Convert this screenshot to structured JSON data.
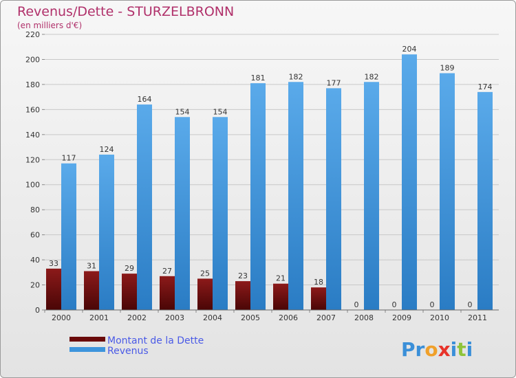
{
  "chart_data": {
    "type": "bar",
    "title": "Revenus/Dette - STURZELBRONN",
    "subtitle": "(en milliers d'€)",
    "categories": [
      "2000",
      "2001",
      "2002",
      "2003",
      "2004",
      "2005",
      "2006",
      "2007",
      "2008",
      "2009",
      "2010",
      "2011"
    ],
    "series": [
      {
        "name": "Montant de la Dette",
        "color": "#7a1010",
        "values": [
          33,
          31,
          29,
          27,
          25,
          23,
          21,
          18,
          0,
          0,
          0,
          0
        ]
      },
      {
        "name": "Revenus",
        "color": "#3d94dc",
        "values": [
          117,
          124,
          164,
          154,
          154,
          181,
          182,
          177,
          182,
          204,
          189,
          174
        ]
      }
    ],
    "ylim": [
      0,
      220
    ],
    "yticks": [
      0,
      20,
      40,
      60,
      80,
      100,
      120,
      140,
      160,
      180,
      200,
      220
    ],
    "grid": true,
    "legend_position": "bottom-left"
  },
  "logo": {
    "text": "Proxiti",
    "letter_colors": [
      "#3a8fd8",
      "#3a8fd8",
      "#f0a02a",
      "#e8332a",
      "#3a8fd8",
      "#8fc43a",
      "#3a8fd8"
    ]
  }
}
